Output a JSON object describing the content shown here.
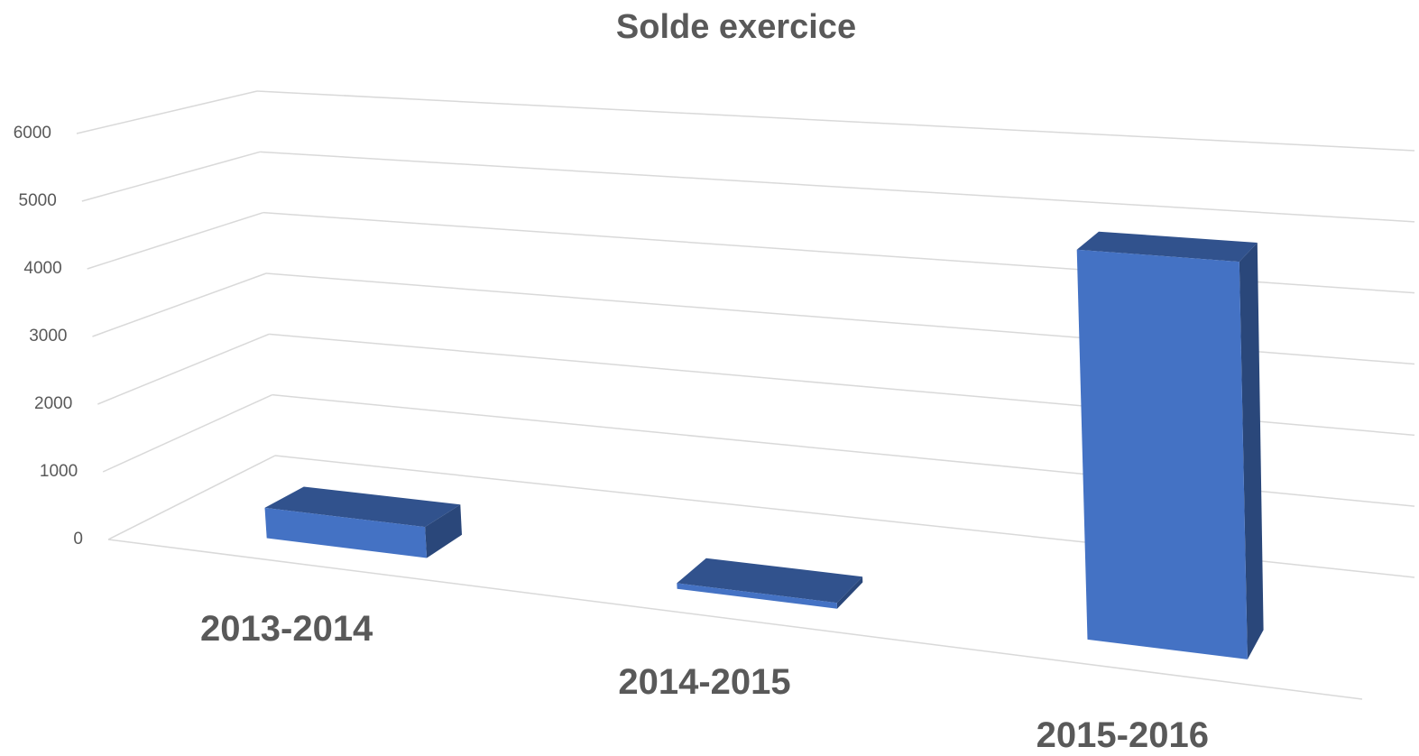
{
  "chart_data": {
    "type": "bar3d",
    "title": "Solde exercice",
    "categories": [
      "2013-2014",
      "2014-2015",
      "2015-2016"
    ],
    "values": [
      450,
      80,
      5200
    ],
    "color": "#4472c4",
    "ylim": [
      0,
      6000
    ],
    "yticks": [
      0,
      1000,
      2000,
      3000,
      4000,
      5000,
      6000
    ],
    "grid": true
  }
}
